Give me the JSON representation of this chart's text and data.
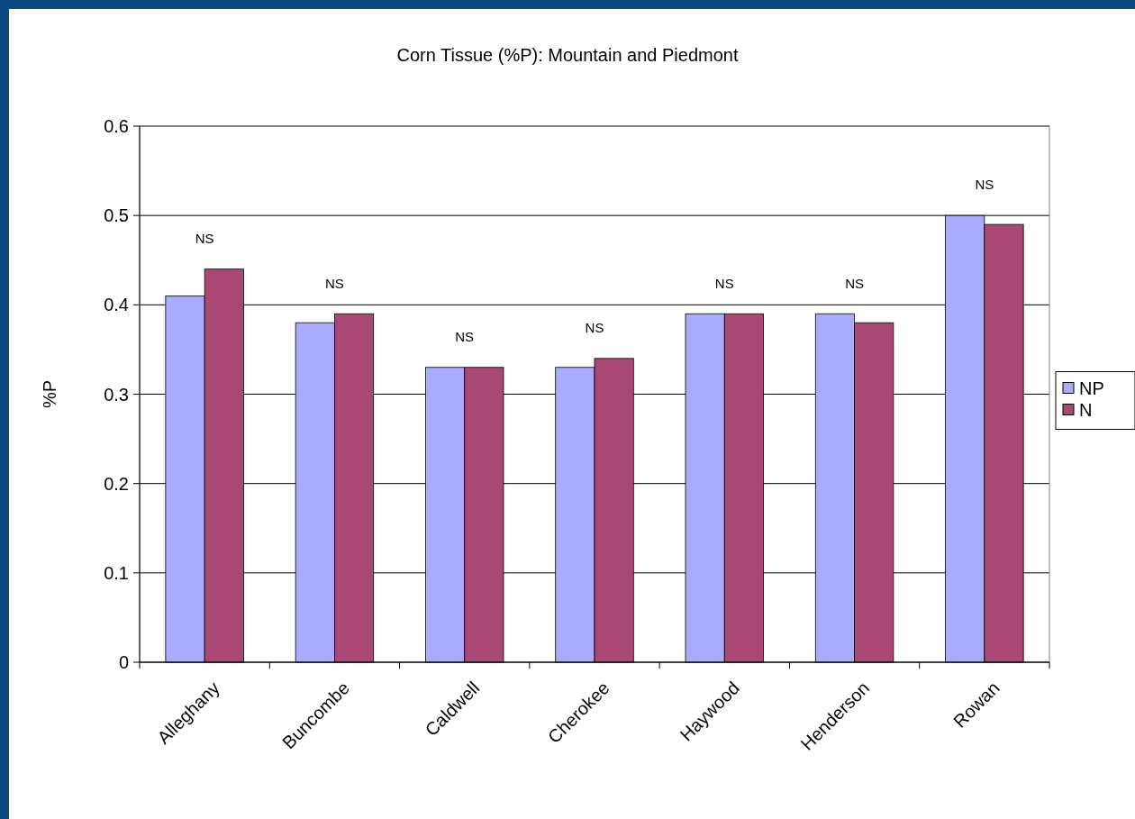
{
  "chart_data": {
    "type": "bar",
    "title": "Corn Tissue (%P): Mountain and Piedmont",
    "ylabel": "%P",
    "categories": [
      "Alleghany",
      "Buncombe",
      "Caldwell",
      "Cherokee",
      "Haywood",
      "Henderson",
      "Rowan"
    ],
    "series": [
      {
        "name": "NP",
        "color": "#aaaaff",
        "values": [
          0.41,
          0.38,
          0.33,
          0.33,
          0.39,
          0.39,
          0.5
        ]
      },
      {
        "name": "N",
        "color": "#a84873",
        "values": [
          0.44,
          0.39,
          0.33,
          0.34,
          0.39,
          0.38,
          0.49
        ]
      }
    ],
    "ylim": [
      0,
      0.6
    ],
    "yticks": [
      0,
      0.1,
      0.2,
      0.3,
      0.4,
      0.5,
      0.6
    ],
    "grid": "y",
    "legend": "right",
    "annotations": [
      "NS",
      "NS",
      "NS",
      "NS",
      "NS",
      "NS",
      "NS"
    ]
  }
}
